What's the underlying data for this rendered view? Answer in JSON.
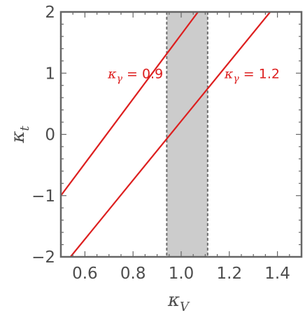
{
  "chart_data": {
    "type": "line",
    "title": "",
    "xlabel": "κ",
    "xlabel_sub": "V",
    "ylabel": "κ",
    "ylabel_sub": "t",
    "xlim": [
      0.5,
      1.5
    ],
    "ylim": [
      -2,
      2
    ],
    "x_ticks": [
      0.6,
      0.8,
      1.0,
      1.2,
      1.4
    ],
    "x_tick_labels": [
      "0.6",
      "0.8",
      "1.0",
      "1.2",
      "1.4"
    ],
    "y_ticks": [
      -2,
      -1,
      0,
      1,
      2
    ],
    "y_tick_labels": [
      "−2",
      "−1",
      "0",
      "1",
      "2"
    ],
    "grid": false,
    "band": {
      "x_min": 0.94,
      "x_max": 1.11,
      "color": "#cccccc",
      "edge_color": "#6e6e6e"
    },
    "series": [
      {
        "label_symbol": "κ",
        "label_sub": "γ",
        "label_text": " = 0.9",
        "color": "#dd1f1f",
        "x": [
          0.5,
          1.07
        ],
        "y": [
          -1.0,
          2.0
        ]
      },
      {
        "label_symbol": "κ",
        "label_sub": "γ",
        "label_text": " = 1.2",
        "color": "#dd1f1f",
        "x": [
          0.54,
          1.37
        ],
        "y": [
          -2.0,
          2.0
        ]
      }
    ],
    "frame_color": "#666666"
  }
}
